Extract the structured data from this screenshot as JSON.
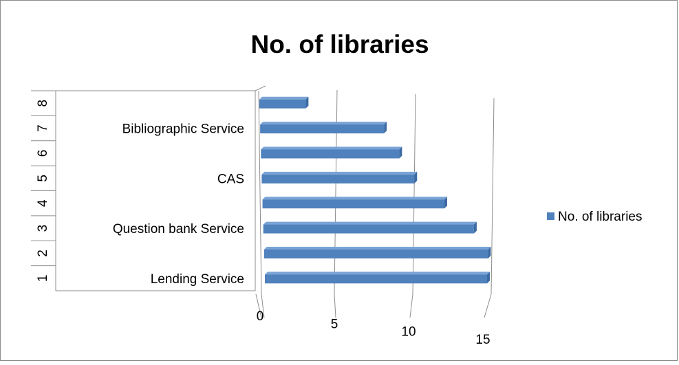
{
  "chart_data": {
    "type": "bar",
    "orientation": "horizontal",
    "style": "3d-clustered",
    "title": "No. of libraries",
    "categories": [
      {
        "index": "1",
        "label": "Lending Service"
      },
      {
        "index": "2",
        "label": ""
      },
      {
        "index": "3",
        "label": "Question bank Service"
      },
      {
        "index": "4",
        "label": ""
      },
      {
        "index": "5",
        "label": "CAS"
      },
      {
        "index": "6",
        "label": ""
      },
      {
        "index": "7",
        "label": "Bibliographic Service"
      },
      {
        "index": "8",
        "label": ""
      }
    ],
    "series": [
      {
        "name": "No. of libraries",
        "values": [
          15,
          15,
          14,
          12,
          10,
          9,
          8,
          3
        ]
      }
    ],
    "xlim": [
      0,
      15
    ],
    "x_ticks": [
      "0",
      "5",
      "10",
      "15"
    ],
    "grid": true,
    "legend_position": "right",
    "colors": {
      "bar": "#4f81bd",
      "bar_top": "#7aa3d6",
      "bar_end": "#3b6aa3",
      "grid": "#8c8c8c",
      "border": "#8c8c8c"
    }
  }
}
